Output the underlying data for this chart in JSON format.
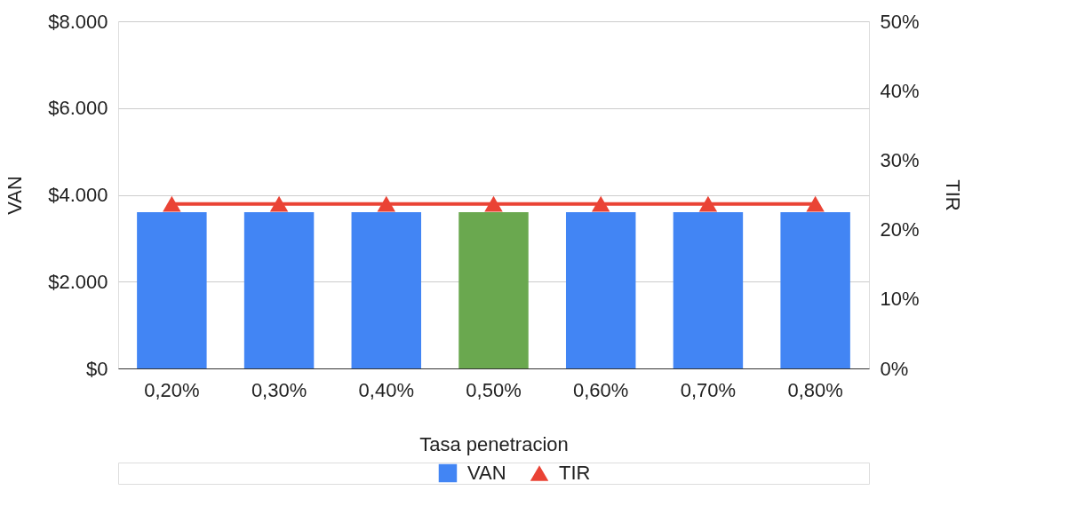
{
  "chart_data": {
    "type": "bar",
    "xlabel": "Tasa penetracion",
    "ylabel": "VAN",
    "y2label": "TIR",
    "categories": [
      "0,20%",
      "0,30%",
      "0,40%",
      "0,50%",
      "0,60%",
      "0,70%",
      "0,80%"
    ],
    "series": [
      {
        "name": "VAN",
        "colors": [
          "#4285f4",
          "#4285f4",
          "#4285f4",
          "#6aa84f",
          "#4285f4",
          "#4285f4",
          "#4285f4"
        ],
        "color": "#4285f4",
        "values": [
          3600,
          3600,
          3600,
          3600,
          3600,
          3600,
          3600
        ]
      },
      {
        "name": "TIR",
        "type": "line",
        "axis": "y2",
        "color": "#ea4335",
        "marker": "triangle",
        "line_style": "solid",
        "values": [
          23.7,
          23.7,
          23.7,
          23.7,
          23.7,
          23.7,
          23.7
        ]
      }
    ],
    "ylim": [
      0,
      8000
    ],
    "yticks": [
      {
        "value": 0,
        "label": "$0"
      },
      {
        "value": 2000,
        "label": "$2.000"
      },
      {
        "value": 4000,
        "label": "$4.000"
      },
      {
        "value": 6000,
        "label": "$6.000"
      },
      {
        "value": 8000,
        "label": "$8.000"
      }
    ],
    "y2lim": [
      0,
      50
    ],
    "y2ticks": [
      {
        "value": 0,
        "label": "0%"
      },
      {
        "value": 10,
        "label": "10%"
      },
      {
        "value": 20,
        "label": "20%"
      },
      {
        "value": 30,
        "label": "30%"
      },
      {
        "value": 40,
        "label": "40%"
      },
      {
        "value": 50,
        "label": "50%"
      }
    ],
    "grid": "y",
    "legend": "bottom"
  }
}
